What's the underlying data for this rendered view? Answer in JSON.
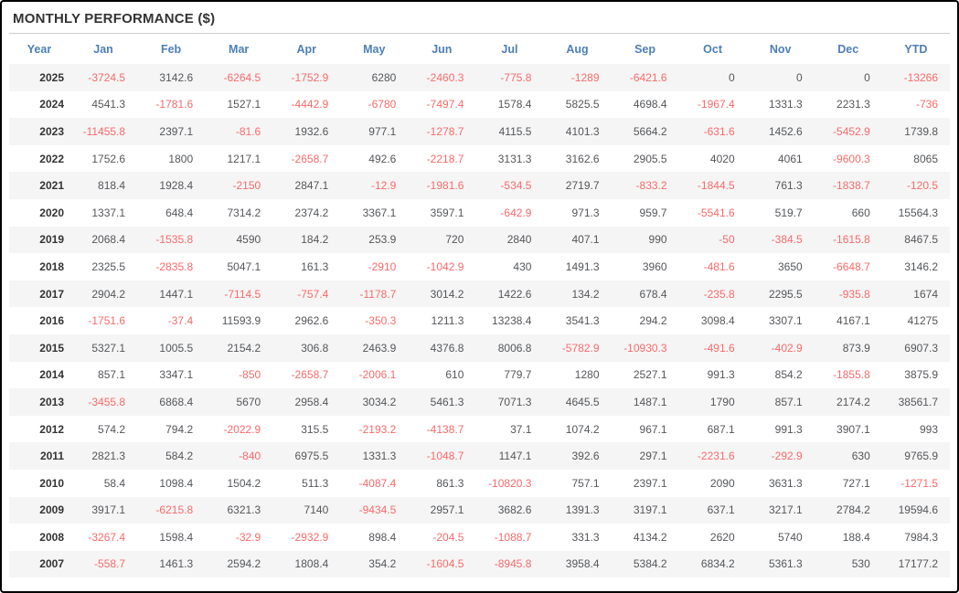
{
  "panel": {
    "title": "MONTHLY PERFORMANCE ($)"
  },
  "colors": {
    "header_text": "#4d7fb8",
    "negative_value": "#f96a6a",
    "positive_value": "#54565a",
    "year_text": "#333333",
    "row_stripe": "#f5f5f5",
    "title_divider": "#cccccc",
    "frame_border": "#000000"
  },
  "chart_data": {
    "type": "table",
    "title": "MONTHLY PERFORMANCE ($)",
    "unit": "$",
    "columns": [
      "Year",
      "Jan",
      "Feb",
      "Mar",
      "Apr",
      "May",
      "Jun",
      "Jul",
      "Aug",
      "Sep",
      "Oct",
      "Nov",
      "Dec",
      "YTD"
    ],
    "rows": [
      {
        "year": "2025",
        "values": [
          -3724.5,
          3142.6,
          -6264.5,
          -1752.9,
          6280,
          -2460.3,
          -775.8,
          -1289,
          -6421.6,
          0,
          0,
          0,
          -13266
        ]
      },
      {
        "year": "2024",
        "values": [
          4541.3,
          -1781.6,
          1527.1,
          -4442.9,
          -6780,
          -7497.4,
          1578.4,
          5825.5,
          4698.4,
          -1967.4,
          1331.3,
          2231.3,
          -736
        ]
      },
      {
        "year": "2023",
        "values": [
          -11455.8,
          2397.1,
          -81.6,
          1932.6,
          977.1,
          -1278.7,
          4115.5,
          4101.3,
          5664.2,
          -631.6,
          1452.6,
          -5452.9,
          1739.8
        ]
      },
      {
        "year": "2022",
        "values": [
          1752.6,
          1800,
          1217.1,
          -2658.7,
          492.6,
          -2218.7,
          3131.3,
          3162.6,
          2905.5,
          4020,
          4061,
          -9600.3,
          8065
        ]
      },
      {
        "year": "2021",
        "values": [
          818.4,
          1928.4,
          -2150,
          2847.1,
          -12.9,
          -1981.6,
          -534.5,
          2719.7,
          -833.2,
          -1844.5,
          761.3,
          -1838.7,
          -120.5
        ]
      },
      {
        "year": "2020",
        "values": [
          1337.1,
          648.4,
          7314.2,
          2374.2,
          3367.1,
          3597.1,
          -642.9,
          971.3,
          959.7,
          -5541.6,
          519.7,
          660,
          15564.3
        ]
      },
      {
        "year": "2019",
        "values": [
          2068.4,
          -1535.8,
          4590,
          184.2,
          253.9,
          720,
          2840,
          407.1,
          990,
          -50,
          -384.5,
          -1615.8,
          8467.5
        ]
      },
      {
        "year": "2018",
        "values": [
          2325.5,
          -2835.8,
          5047.1,
          161.3,
          -2910,
          -1042.9,
          430,
          1491.3,
          3960,
          -481.6,
          3650,
          -6648.7,
          3146.2
        ]
      },
      {
        "year": "2017",
        "values": [
          2904.2,
          1447.1,
          -7114.5,
          -757.4,
          -1178.7,
          3014.2,
          1422.6,
          134.2,
          678.4,
          -235.8,
          2295.5,
          -935.8,
          1674
        ]
      },
      {
        "year": "2016",
        "values": [
          -1751.6,
          -37.4,
          11593.9,
          2962.6,
          -350.3,
          1211.3,
          13238.4,
          3541.3,
          294.2,
          3098.4,
          3307.1,
          4167.1,
          41275
        ]
      },
      {
        "year": "2015",
        "values": [
          5327.1,
          1005.5,
          2154.2,
          306.8,
          2463.9,
          4376.8,
          8006.8,
          -5782.9,
          -10930.3,
          -491.6,
          -402.9,
          873.9,
          6907.3
        ]
      },
      {
        "year": "2014",
        "values": [
          857.1,
          3347.1,
          -850,
          -2658.7,
          -2006.1,
          610,
          779.7,
          1280,
          2527.1,
          991.3,
          854.2,
          -1855.8,
          3875.9
        ]
      },
      {
        "year": "2013",
        "values": [
          -3455.8,
          6868.4,
          5670,
          2958.4,
          3034.2,
          5461.3,
          7071.3,
          4645.5,
          1487.1,
          1790,
          857.1,
          2174.2,
          38561.7
        ]
      },
      {
        "year": "2012",
        "values": [
          574.2,
          794.2,
          -2022.9,
          315.5,
          -2193.2,
          -4138.7,
          37.1,
          1074.2,
          967.1,
          687.1,
          991.3,
          3907.1,
          993
        ]
      },
      {
        "year": "2011",
        "values": [
          2821.3,
          584.2,
          -840,
          6975.5,
          1331.3,
          -1048.7,
          1147.1,
          392.6,
          297.1,
          -2231.6,
          -292.9,
          630,
          9765.9
        ]
      },
      {
        "year": "2010",
        "values": [
          58.4,
          1098.4,
          1504.2,
          511.3,
          -4087.4,
          861.3,
          -10820.3,
          757.1,
          2397.1,
          2090,
          3631.3,
          727.1,
          -1271.5
        ]
      },
      {
        "year": "2009",
        "values": [
          3917.1,
          -6215.8,
          6321.3,
          7140,
          -9434.5,
          2957.1,
          3682.6,
          1391.3,
          3197.1,
          637.1,
          3217.1,
          2784.2,
          19594.6
        ]
      },
      {
        "year": "2008",
        "values": [
          -3267.4,
          1598.4,
          -32.9,
          -2932.9,
          898.4,
          -204.5,
          -1088.7,
          331.3,
          4134.2,
          2620,
          5740,
          188.4,
          7984.3
        ]
      },
      {
        "year": "2007",
        "values": [
          -558.7,
          1461.3,
          2594.2,
          1808.4,
          354.2,
          -1604.5,
          -8945.8,
          3958.4,
          5384.2,
          6834.2,
          5361.3,
          530,
          17177.2
        ]
      }
    ]
  }
}
